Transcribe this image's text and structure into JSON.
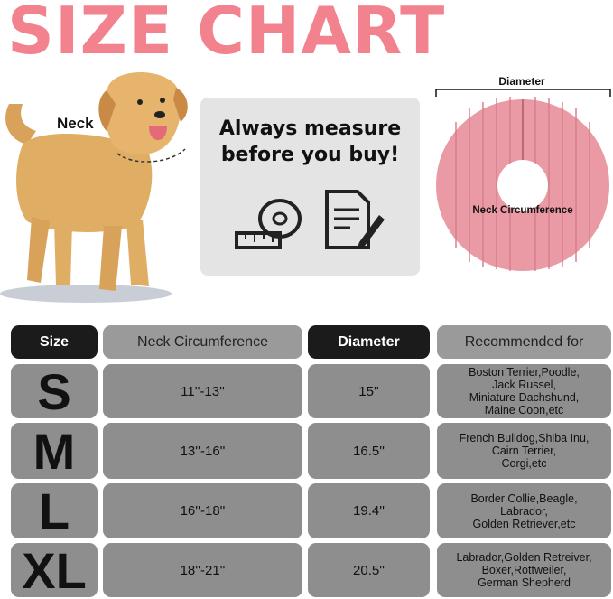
{
  "title": "SIZE CHART",
  "illustration": {
    "neck_label": "Neck",
    "measure_text_line1": "Always measure",
    "measure_text_line2": "before you buy!",
    "icons": [
      "measuring-tape-icon",
      "document-pen-icon"
    ],
    "diameter_label": "Diameter",
    "neck_circumference_label": "Neck Circumference"
  },
  "colors": {
    "title": "#f3828f",
    "cone": "#e99aa5",
    "header_dark": "#1b1b1b",
    "cell": "#8e8e8e"
  },
  "table": {
    "headers": [
      "Size",
      "Neck Circumference",
      "Diameter",
      "Recommended for"
    ],
    "rows": [
      {
        "size": "S",
        "neck": "11''-13''",
        "diameter": "15''",
        "recommended": [
          "Boston Terrier,Poodle,",
          "Jack Russel,",
          "Miniature Dachshund,",
          "Maine Coon,etc"
        ]
      },
      {
        "size": "M",
        "neck": "13''-16''",
        "diameter": "16.5''",
        "recommended": [
          "French Bulldog,Shiba Inu,",
          "Cairn Terrier,",
          "Corgi,etc"
        ]
      },
      {
        "size": "L",
        "neck": "16''-18''",
        "diameter": "19.4''",
        "recommended": [
          "Border Collie,Beagle,",
          "Labrador,",
          "Golden Retriever,etc"
        ]
      },
      {
        "size": "XL",
        "neck": "18''-21''",
        "diameter": "20.5''",
        "recommended": [
          "Labrador,Golden Retreiver,",
          "Boxer,Rottweiler,",
          "German Shepherd"
        ]
      }
    ]
  }
}
